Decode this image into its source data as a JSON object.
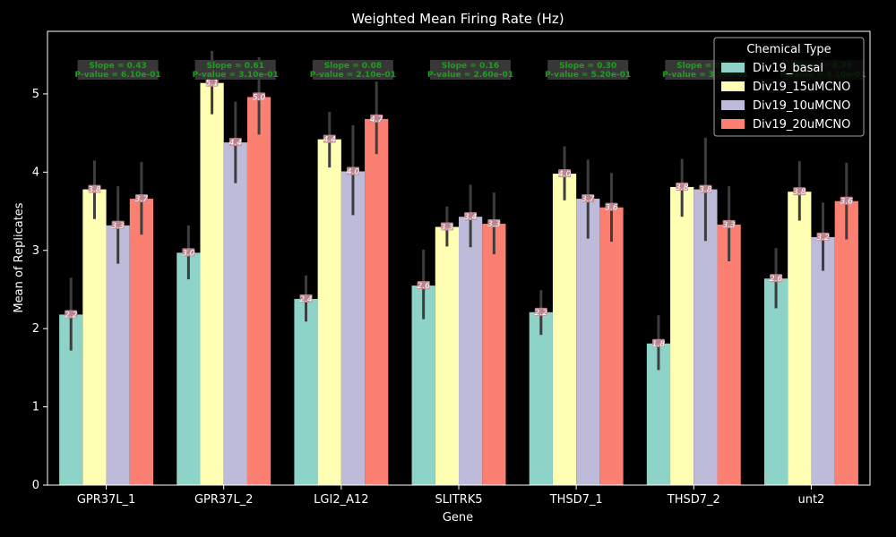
{
  "chart_data": {
    "type": "bar",
    "title": "Weighted Mean Firing Rate (Hz)",
    "xlabel": "Gene",
    "ylabel": "Mean of Replicates",
    "categories": [
      "GPR37L_1",
      "GPR37L_2",
      "LGI2_A12",
      "SLITRK5",
      "THSD7_1",
      "THSD7_2",
      "unt2"
    ],
    "ylim": [
      0,
      5.8
    ],
    "yticks": [
      0,
      1,
      2,
      3,
      4,
      5
    ],
    "legend_title": "Chemical Type",
    "legend_position": "top-right",
    "series": [
      {
        "name": "Div19_basal",
        "color": "#8dd3c7",
        "values": [
          2.18,
          2.97,
          2.38,
          2.55,
          2.21,
          1.81,
          2.64
        ],
        "labels": [
          "2.2",
          "3.0",
          "2.4",
          "2.6",
          "2.2",
          "1.8",
          "2.6"
        ],
        "err_low": [
          1.72,
          2.63,
          2.09,
          2.12,
          1.92,
          1.47,
          2.26
        ],
        "err_high": [
          2.65,
          3.32,
          2.68,
          3.01,
          2.49,
          2.17,
          3.03
        ]
      },
      {
        "name": "Div19_15uMCNO",
        "color": "#ffffb3",
        "values": [
          3.78,
          5.14,
          4.42,
          3.3,
          3.98,
          3.81,
          3.75
        ],
        "labels": [
          "3.8",
          "5.1",
          "4.4",
          "3.3",
          "4.0",
          "3.8",
          "3.8"
        ],
        "err_low": [
          3.4,
          4.74,
          4.06,
          3.05,
          3.64,
          3.43,
          3.38
        ],
        "err_high": [
          4.15,
          5.55,
          4.77,
          3.56,
          4.33,
          4.17,
          4.14
        ]
      },
      {
        "name": "Div19_10uMCNO",
        "color": "#bebada",
        "values": [
          3.32,
          4.38,
          4.01,
          3.43,
          3.66,
          3.78,
          3.17
        ],
        "labels": [
          "3.3",
          "4.4",
          "4.0",
          "3.4",
          "3.7",
          "3.8",
          "3.2"
        ],
        "err_low": [
          2.83,
          3.86,
          3.45,
          3.04,
          3.15,
          3.12,
          2.74
        ],
        "err_high": [
          3.82,
          4.9,
          4.6,
          3.84,
          4.16,
          4.44,
          3.61
        ]
      },
      {
        "name": "Div19_20uMCNO",
        "color": "#fb8072",
        "values": [
          3.66,
          4.96,
          4.68,
          3.34,
          3.55,
          3.33,
          3.63
        ],
        "labels": [
          "3.7",
          "5.0",
          "4.7",
          "3.3",
          "3.6",
          "3.3",
          "3.6"
        ],
        "err_low": [
          3.2,
          4.48,
          4.23,
          2.95,
          3.11,
          2.86,
          3.14
        ],
        "err_high": [
          4.13,
          5.47,
          5.16,
          3.74,
          3.99,
          3.82,
          4.12
        ]
      }
    ],
    "annotations": [
      {
        "line1": "Slope = 0.43",
        "line2": "P-value = 6.10e-01"
      },
      {
        "line1": "Slope = 0.61",
        "line2": "P-value = 3.10e-01"
      },
      {
        "line1": "Slope = 0.08",
        "line2": "P-value = 2.10e-01"
      },
      {
        "line1": "Slope = 0.16",
        "line2": "P-value = 2.60e-01"
      },
      {
        "line1": "Slope = 0.30",
        "line2": "P-value = 5.20e-01"
      },
      {
        "line1": "Slope = 0.48",
        "line2": "P-value = 3.50e-01"
      },
      {
        "line1": "Slope = 0.39",
        "line2": "P-value = 4.10e-01"
      }
    ],
    "grid": false
  }
}
